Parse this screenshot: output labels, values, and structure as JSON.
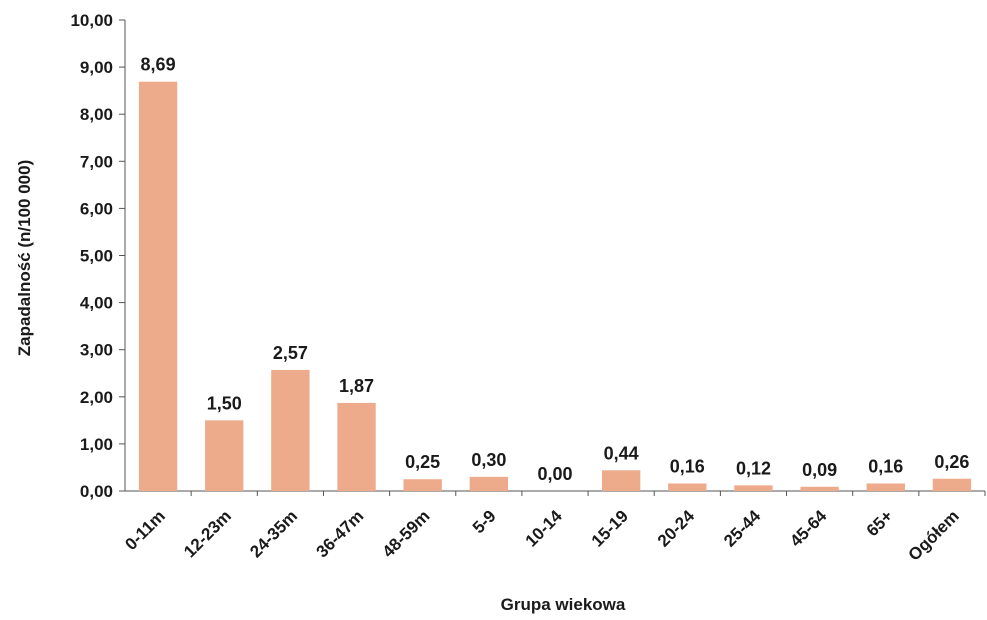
{
  "chart_data": {
    "type": "bar",
    "xlabel": "Grupa wiekowa",
    "ylabel": "Zapadalność (n/100 000)",
    "ylim": [
      0,
      10
    ],
    "y_ticks": [
      "0,00",
      "1,00",
      "2,00",
      "3,00",
      "4,00",
      "5,00",
      "6,00",
      "7,00",
      "8,00",
      "9,00",
      "10,00"
    ],
    "categories": [
      "0-11m",
      "12-23m",
      "24-35m",
      "36-47m",
      "48-59m",
      "5-9",
      "10-14",
      "15-19",
      "20-24",
      "25-44",
      "45-64",
      "65+",
      "Ogółem"
    ],
    "values": [
      8.69,
      1.5,
      2.57,
      1.87,
      0.25,
      0.3,
      0.0,
      0.44,
      0.16,
      0.12,
      0.09,
      0.16,
      0.26
    ],
    "value_labels": [
      "8,69",
      "1,50",
      "2,57",
      "1,87",
      "0,25",
      "0,30",
      "0,00",
      "0,44",
      "0,16",
      "0,12",
      "0,09",
      "0,16",
      "0,26"
    ],
    "bar_color": "#eeab8c",
    "grid": false,
    "legend": "none"
  }
}
